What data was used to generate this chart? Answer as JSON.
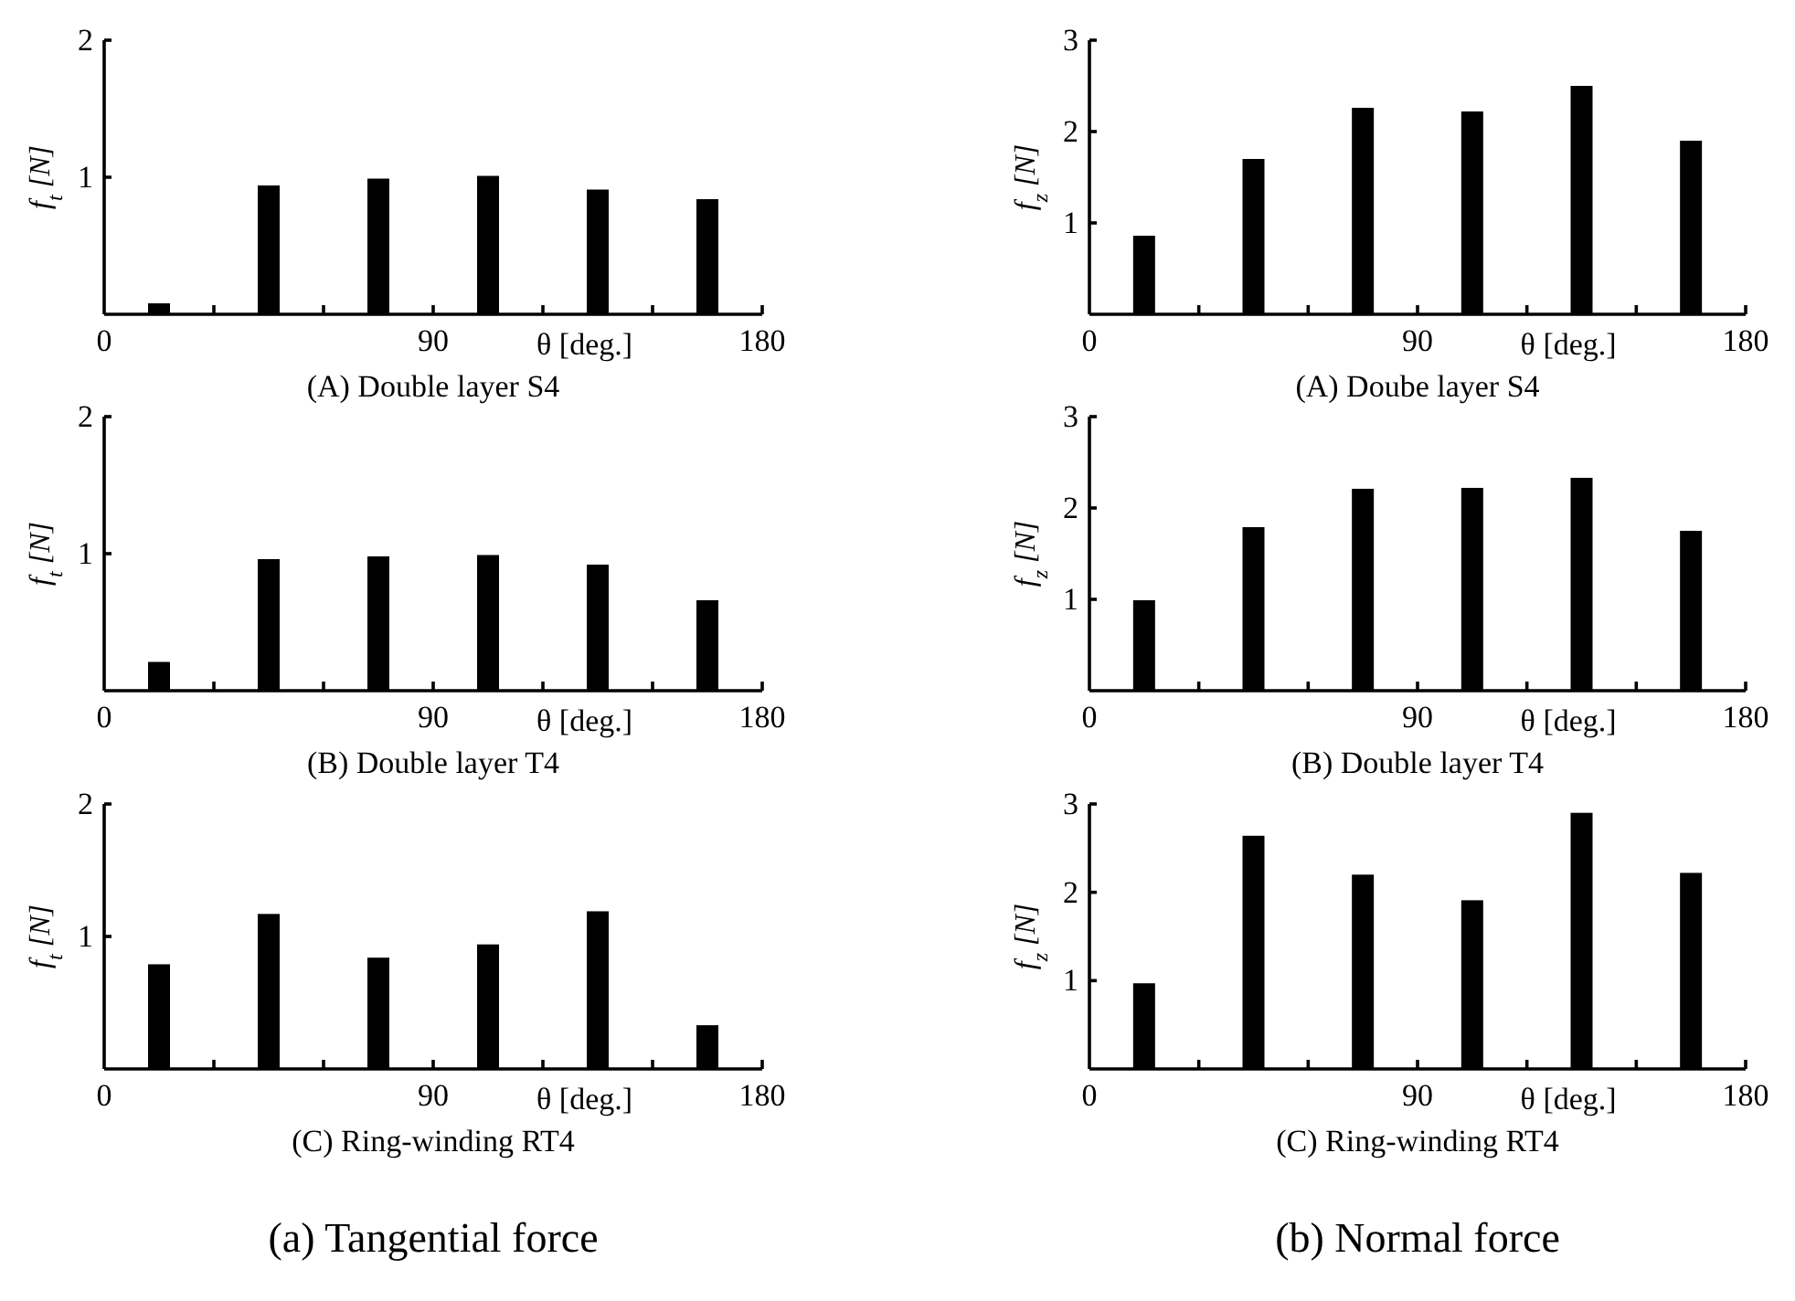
{
  "chart_data": [
    {
      "type": "bar",
      "title": "(A) Double layer S4",
      "xlabel": "θ [deg.]",
      "ylabel": "f$_{t}$ [N]",
      "x": [
        15,
        45,
        75,
        105,
        135,
        165
      ],
      "values": [
        0.08,
        0.94,
        0.99,
        1.01,
        0.91,
        0.84
      ],
      "color": "#000000",
      "xlim": [
        0,
        180
      ],
      "xticks": [
        0,
        {
          "value": 30,
          "label": null
        },
        {
          "value": 60,
          "label": null
        },
        90,
        {
          "value": 120,
          "label": null
        },
        {
          "value": 150,
          "label": null
        },
        180
      ],
      "ylim": [
        0,
        2
      ],
      "yticks": [
        1,
        2
      ],
      "grid": false
    },
    {
      "type": "bar",
      "title": "(A) Doube layer S4",
      "xlabel": "θ [deg.]",
      "ylabel": "f$_{z}$ [N]",
      "x": [
        15,
        45,
        75,
        105,
        135,
        165
      ],
      "values": [
        0.86,
        1.7,
        2.26,
        2.22,
        2.5,
        1.9
      ],
      "color": "#000000",
      "xlim": [
        0,
        180
      ],
      "xticks": [
        0,
        {
          "value": 30,
          "label": null
        },
        {
          "value": 60,
          "label": null
        },
        90,
        {
          "value": 120,
          "label": null
        },
        {
          "value": 150,
          "label": null
        },
        180
      ],
      "ylim": [
        0,
        3
      ],
      "yticks": [
        1,
        2,
        3
      ],
      "grid": false
    },
    {
      "type": "bar",
      "title": "(B) Double layer T4",
      "xlabel": "θ [deg.]",
      "ylabel": "f$_{t}$ [N]",
      "x": [
        15,
        45,
        75,
        105,
        135,
        165
      ],
      "values": [
        0.21,
        0.96,
        0.98,
        0.99,
        0.92,
        0.66
      ],
      "color": "#000000",
      "xlim": [
        0,
        180
      ],
      "xticks": [
        0,
        {
          "value": 30,
          "label": null
        },
        {
          "value": 60,
          "label": null
        },
        90,
        {
          "value": 120,
          "label": null
        },
        {
          "value": 150,
          "label": null
        },
        180
      ],
      "ylim": [
        0,
        2
      ],
      "yticks": [
        1,
        2
      ],
      "grid": false
    },
    {
      "type": "bar",
      "title": "(B) Double layer T4",
      "xlabel": "θ [deg.]",
      "ylabel": "f$_{z}$ [N]",
      "x": [
        15,
        45,
        75,
        105,
        135,
        165
      ],
      "values": [
        0.99,
        1.79,
        2.21,
        2.22,
        2.33,
        1.75
      ],
      "color": "#000000",
      "xlim": [
        0,
        180
      ],
      "xticks": [
        0,
        {
          "value": 30,
          "label": null
        },
        {
          "value": 60,
          "label": null
        },
        90,
        {
          "value": 120,
          "label": null
        },
        {
          "value": 150,
          "label": null
        },
        180
      ],
      "ylim": [
        0,
        3
      ],
      "yticks": [
        1,
        2,
        3
      ],
      "grid": false
    },
    {
      "type": "bar",
      "title": "(C) Ring-winding RT4",
      "xlabel": "θ [deg.]",
      "ylabel": "f$_{t}$ [N]",
      "x": [
        15,
        45,
        75,
        105,
        135,
        165
      ],
      "values": [
        0.79,
        1.17,
        0.84,
        0.94,
        1.19,
        0.33
      ],
      "color": "#000000",
      "xlim": [
        0,
        180
      ],
      "xticks": [
        0,
        {
          "value": 30,
          "label": null
        },
        {
          "value": 60,
          "label": null
        },
        90,
        {
          "value": 120,
          "label": null
        },
        {
          "value": 150,
          "label": null
        },
        180
      ],
      "ylim": [
        0,
        2
      ],
      "yticks": [
        1,
        2
      ],
      "grid": false,
      "annotations": [
        "(a) Tangential force"
      ]
    },
    {
      "type": "bar",
      "title": "(C) Ring-winding RT4",
      "xlabel": "θ [deg.]",
      "ylabel": "f$_{z}$ [N]",
      "x": [
        15,
        45,
        75,
        105,
        135,
        165
      ],
      "values": [
        0.97,
        2.64,
        2.2,
        1.91,
        2.9,
        2.22
      ],
      "color": "#000000",
      "xlim": [
        0,
        180
      ],
      "xticks": [
        0,
        {
          "value": 30,
          "label": null
        },
        {
          "value": 60,
          "label": null
        },
        90,
        {
          "value": 120,
          "label": null
        },
        {
          "value": 150,
          "label": null
        },
        180
      ],
      "ylim": [
        0,
        3
      ],
      "yticks": [
        1,
        2,
        3
      ],
      "grid": false,
      "annotations": [
        "(b) Normal force"
      ]
    }
  ]
}
